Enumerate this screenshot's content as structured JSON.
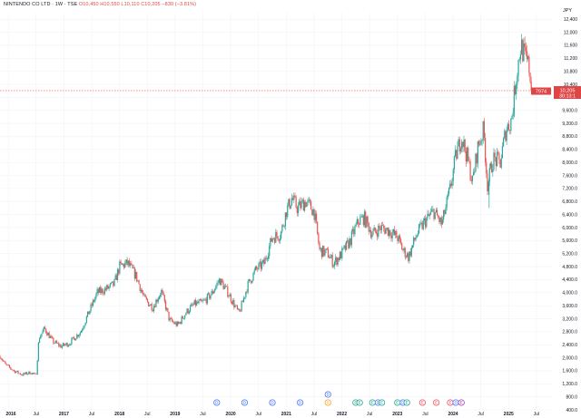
{
  "legend": {
    "symbol": "NINTENDO CO LTD · 1W · TSE",
    "ohlc": "O10,450  H10,550  L10,110  C10,205  −830 (−3.81%)"
  },
  "currency": "JPY",
  "price_tags": {
    "ticker": "7974",
    "last": "10,205",
    "countdown": "30:13:1"
  },
  "colors": {
    "up": "#26a69a",
    "down": "#ef5350",
    "line": "#ef5350"
  },
  "chart_data": {
    "type": "candlestick",
    "title": "",
    "ylim": [
      400,
      12600
    ],
    "y_ticks": [
      "400.0",
      "800.0",
      "1,200.0",
      "1,600.0",
      "2,000.0",
      "2,400.0",
      "2,800.0",
      "3,200.0",
      "3,600.0",
      "4,000.0",
      "4,400.0",
      "4,800.0",
      "5,200.0",
      "5,600.0",
      "6,000.0",
      "6,400.0",
      "6,800.0",
      "7,200.0",
      "7,600.0",
      "8,000.0",
      "8,400.0",
      "8,800.0",
      "9,200.0",
      "9,600.0",
      "10,000",
      "10,400",
      "10,800",
      "11,200",
      "11,600",
      "12,000",
      "12,400"
    ],
    "x_ticks": [
      {
        "t": 2016.0,
        "label": "2016",
        "year": true
      },
      {
        "t": 2016.5,
        "label": "Jul",
        "year": false
      },
      {
        "t": 2017.0,
        "label": "2017",
        "year": true
      },
      {
        "t": 2017.5,
        "label": "Jul",
        "year": false
      },
      {
        "t": 2018.0,
        "label": "2018",
        "year": true
      },
      {
        "t": 2018.5,
        "label": "Jul",
        "year": false
      },
      {
        "t": 2019.0,
        "label": "2019",
        "year": true
      },
      {
        "t": 2019.5,
        "label": "Jul",
        "year": false
      },
      {
        "t": 2020.0,
        "label": "2020",
        "year": true
      },
      {
        "t": 2020.5,
        "label": "Jul",
        "year": false
      },
      {
        "t": 2021.0,
        "label": "2021",
        "year": true
      },
      {
        "t": 2021.5,
        "label": "Jul",
        "year": false
      },
      {
        "t": 2022.0,
        "label": "2022",
        "year": true
      },
      {
        "t": 2022.5,
        "label": "Jul",
        "year": false
      },
      {
        "t": 2023.0,
        "label": "2023",
        "year": true
      },
      {
        "t": 2023.5,
        "label": "Jul",
        "year": false
      },
      {
        "t": 2024.0,
        "label": "2024",
        "year": true
      },
      {
        "t": 2024.5,
        "label": "Jul",
        "year": false
      },
      {
        "t": 2025.0,
        "label": "2025",
        "year": true
      },
      {
        "t": 2025.5,
        "label": "Jul",
        "year": false
      }
    ],
    "last_price": 10205,
    "close_path": [
      {
        "t": 2015.85,
        "c": 2050
      },
      {
        "t": 2015.95,
        "c": 1780
      },
      {
        "t": 2016.1,
        "c": 1600
      },
      {
        "t": 2016.25,
        "c": 1480
      },
      {
        "t": 2016.4,
        "c": 1550
      },
      {
        "t": 2016.5,
        "c": 1450
      },
      {
        "t": 2016.55,
        "c": 2600
      },
      {
        "t": 2016.65,
        "c": 2900
      },
      {
        "t": 2016.8,
        "c": 2500
      },
      {
        "t": 2016.95,
        "c": 2350
      },
      {
        "t": 2017.1,
        "c": 2450
      },
      {
        "t": 2017.3,
        "c": 2800
      },
      {
        "t": 2017.45,
        "c": 3400
      },
      {
        "t": 2017.6,
        "c": 4000
      },
      {
        "t": 2017.75,
        "c": 4100
      },
      {
        "t": 2017.9,
        "c": 4250
      },
      {
        "t": 2018.0,
        "c": 4800
      },
      {
        "t": 2018.15,
        "c": 4900
      },
      {
        "t": 2018.3,
        "c": 4500
      },
      {
        "t": 2018.45,
        "c": 3800
      },
      {
        "t": 2018.6,
        "c": 3550
      },
      {
        "t": 2018.75,
        "c": 4050
      },
      {
        "t": 2018.9,
        "c": 3150
      },
      {
        "t": 2019.05,
        "c": 3000
      },
      {
        "t": 2019.2,
        "c": 3400
      },
      {
        "t": 2019.35,
        "c": 3650
      },
      {
        "t": 2019.5,
        "c": 3700
      },
      {
        "t": 2019.65,
        "c": 3950
      },
      {
        "t": 2019.8,
        "c": 4400
      },
      {
        "t": 2019.95,
        "c": 4000
      },
      {
        "t": 2020.15,
        "c": 3350
      },
      {
        "t": 2020.3,
        "c": 4200
      },
      {
        "t": 2020.45,
        "c": 4700
      },
      {
        "t": 2020.6,
        "c": 4900
      },
      {
        "t": 2020.75,
        "c": 5700
      },
      {
        "t": 2020.9,
        "c": 5800
      },
      {
        "t": 2021.0,
        "c": 6500
      },
      {
        "t": 2021.1,
        "c": 6900
      },
      {
        "t": 2021.2,
        "c": 6600
      },
      {
        "t": 2021.35,
        "c": 6800
      },
      {
        "t": 2021.5,
        "c": 6500
      },
      {
        "t": 2021.6,
        "c": 5300
      },
      {
        "t": 2021.75,
        "c": 5200
      },
      {
        "t": 2021.85,
        "c": 4900
      },
      {
        "t": 2022.0,
        "c": 5200
      },
      {
        "t": 2022.15,
        "c": 5600
      },
      {
        "t": 2022.3,
        "c": 6200
      },
      {
        "t": 2022.4,
        "c": 6300
      },
      {
        "t": 2022.55,
        "c": 5800
      },
      {
        "t": 2022.7,
        "c": 6000
      },
      {
        "t": 2022.85,
        "c": 5900
      },
      {
        "t": 2023.0,
        "c": 5700
      },
      {
        "t": 2023.1,
        "c": 5300
      },
      {
        "t": 2023.2,
        "c": 5100
      },
      {
        "t": 2023.35,
        "c": 5800
      },
      {
        "t": 2023.5,
        "c": 6200
      },
      {
        "t": 2023.65,
        "c": 6500
      },
      {
        "t": 2023.8,
        "c": 6100
      },
      {
        "t": 2023.95,
        "c": 7200
      },
      {
        "t": 2024.05,
        "c": 8200
      },
      {
        "t": 2024.15,
        "c": 8800
      },
      {
        "t": 2024.25,
        "c": 8200
      },
      {
        "t": 2024.35,
        "c": 7400
      },
      {
        "t": 2024.45,
        "c": 8500
      },
      {
        "t": 2024.55,
        "c": 9000
      },
      {
        "t": 2024.62,
        "c": 7300
      },
      {
        "t": 2024.72,
        "c": 8100
      },
      {
        "t": 2024.85,
        "c": 8000
      },
      {
        "t": 2024.95,
        "c": 9000
      },
      {
        "t": 2025.05,
        "c": 9300
      },
      {
        "t": 2025.15,
        "c": 10800
      },
      {
        "t": 2025.22,
        "c": 11600
      },
      {
        "t": 2025.3,
        "c": 11200
      },
      {
        "t": 2025.37,
        "c": 10900
      },
      {
        "t": 2025.42,
        "c": 10205
      }
    ],
    "spikes": [
      {
        "t": 2024.65,
        "low": 6600
      },
      {
        "t": 2025.1,
        "low": 9400
      }
    ],
    "events": [
      {
        "t": 2019.75,
        "glyph": "D",
        "color": "#2962ff",
        "row": 0
      },
      {
        "t": 2020.25,
        "glyph": "D",
        "color": "#2962ff",
        "row": 0
      },
      {
        "t": 2020.75,
        "glyph": "D",
        "color": "#2962ff",
        "row": 0
      },
      {
        "t": 2021.25,
        "glyph": "D",
        "color": "#2962ff",
        "row": 0
      },
      {
        "t": 2021.75,
        "glyph": "S",
        "color": "#ff9800",
        "row": 0
      },
      {
        "t": 2021.75,
        "glyph": "D",
        "color": "#2962ff",
        "row": 1
      },
      {
        "t": 2022.25,
        "glyph": "E",
        "color": "#089981",
        "row": 0
      },
      {
        "t": 2022.32,
        "glyph": "E",
        "color": "#089981",
        "row": 0
      },
      {
        "t": 2022.55,
        "glyph": "E",
        "color": "#089981",
        "row": 0
      },
      {
        "t": 2022.65,
        "glyph": "D",
        "color": "#2962ff",
        "row": 0
      },
      {
        "t": 2022.72,
        "glyph": "E",
        "color": "#089981",
        "row": 0
      },
      {
        "t": 2023.0,
        "glyph": "E",
        "color": "#089981",
        "row": 0
      },
      {
        "t": 2023.1,
        "glyph": "D",
        "color": "#2962ff",
        "row": 0
      },
      {
        "t": 2023.17,
        "glyph": "E",
        "color": "#089981",
        "row": 0
      },
      {
        "t": 2023.45,
        "glyph": "E",
        "color": "#f23645",
        "row": 0
      },
      {
        "t": 2023.7,
        "glyph": "E",
        "color": "#f23645",
        "row": 0
      },
      {
        "t": 2023.95,
        "glyph": "E",
        "color": "#f23645",
        "row": 0
      },
      {
        "t": 2024.05,
        "glyph": "D",
        "color": "#2962ff",
        "row": 0
      },
      {
        "t": 2024.15,
        "glyph": "E",
        "color": "#9c27b0",
        "row": 0
      }
    ]
  }
}
